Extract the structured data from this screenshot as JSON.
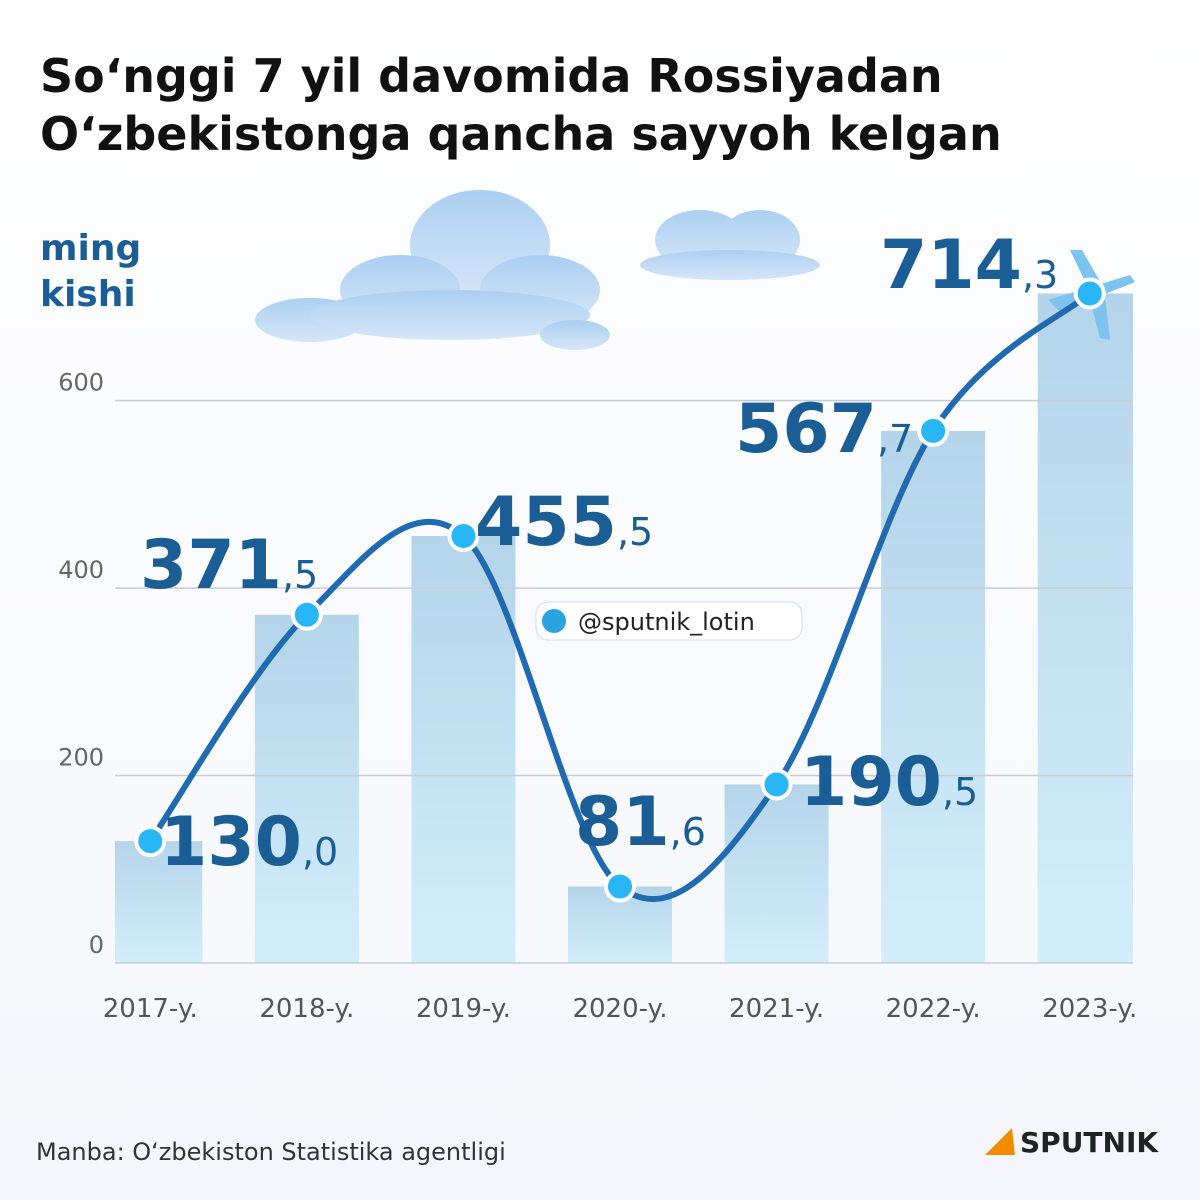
{
  "chart_data": {
    "type": "line",
    "title": [
      "So‘nggi 7 yil davomida Rossiyadan",
      "O‘zbekistonga qancha sayyoh kelgan"
    ],
    "y_label": [
      "ming",
      "kishi"
    ],
    "categories": [
      "2017-y.",
      "2018-y.",
      "2019-y.",
      "2020-y.",
      "2021-y.",
      "2022-y.",
      "2023-y."
    ],
    "values": [
      130.0,
      371.5,
      455.5,
      81.6,
      190.5,
      567.7,
      714.3
    ],
    "value_labels": [
      "130,0",
      "371,5",
      "455,5",
      "81,6",
      "190,5",
      "567,7",
      "714,3"
    ],
    "color": "#1f6ab0",
    "point_color": "#29b6f6",
    "ylim": [
      0,
      750
    ],
    "yticks": [
      0,
      200,
      400,
      600
    ],
    "grid": true,
    "watermark": "@sputnik_lotin",
    "source": "Manba: O‘zbekiston Statistika agentligi",
    "logo": "SPUTNIK"
  }
}
